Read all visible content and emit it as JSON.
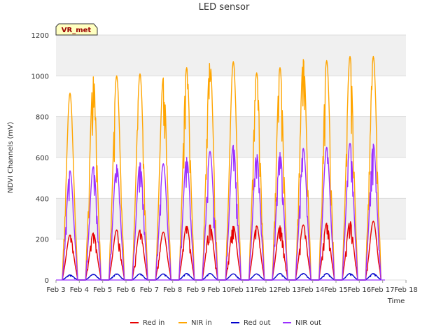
{
  "chart_data": {
    "type": "line",
    "title": "LED sensor",
    "xlabel": "Time",
    "ylabel": "NDVI Channels (mV)",
    "ylim": [
      0,
      1200
    ],
    "yticks": [
      0,
      200,
      400,
      600,
      800,
      1000,
      1200
    ],
    "xlim": [
      3,
      18
    ],
    "x_tick_labels": [
      "Feb 3",
      "Feb 4",
      "Feb 5",
      "Feb 6",
      "Feb 7",
      "Feb 8",
      "Feb 9",
      "Feb 10",
      "Feb 11",
      "Feb 12",
      "Feb 13",
      "Feb 14",
      "Feb 15",
      "Feb 16",
      "Feb 17",
      "Feb 18"
    ],
    "annotation": "VR_met",
    "grid": "horizontal bands",
    "legend_position": "bottom",
    "x_unit": "day of February (daily peak at ~12:00)",
    "days": [
      3.6,
      4.6,
      5.6,
      6.6,
      7.6,
      8.6,
      9.6,
      10.6,
      11.6,
      12.6,
      13.6,
      14.6,
      15.6,
      16.6
    ],
    "series": [
      {
        "name": "Red in",
        "color": "#e60000",
        "daily_peaks": [
          220,
          230,
          245,
          245,
          235,
          265,
          270,
          265,
          265,
          265,
          270,
          278,
          288,
          288
        ]
      },
      {
        "name": "NIR in",
        "color": "#ffa500",
        "daily_peaks": [
          915,
          995,
          1000,
          1010,
          990,
          1040,
          1070,
          1070,
          1015,
          1040,
          1080,
          1075,
          1095,
          1095
        ]
      },
      {
        "name": "Red out",
        "color": "#0000cc",
        "daily_peaks": [
          25,
          28,
          30,
          30,
          30,
          32,
          32,
          30,
          30,
          32,
          32,
          32,
          32,
          32
        ]
      },
      {
        "name": "NIR out",
        "color": "#9b30ff",
        "daily_peaks": [
          535,
          555,
          565,
          575,
          570,
          600,
          630,
          660,
          620,
          625,
          645,
          650,
          670,
          665
        ]
      }
    ]
  }
}
